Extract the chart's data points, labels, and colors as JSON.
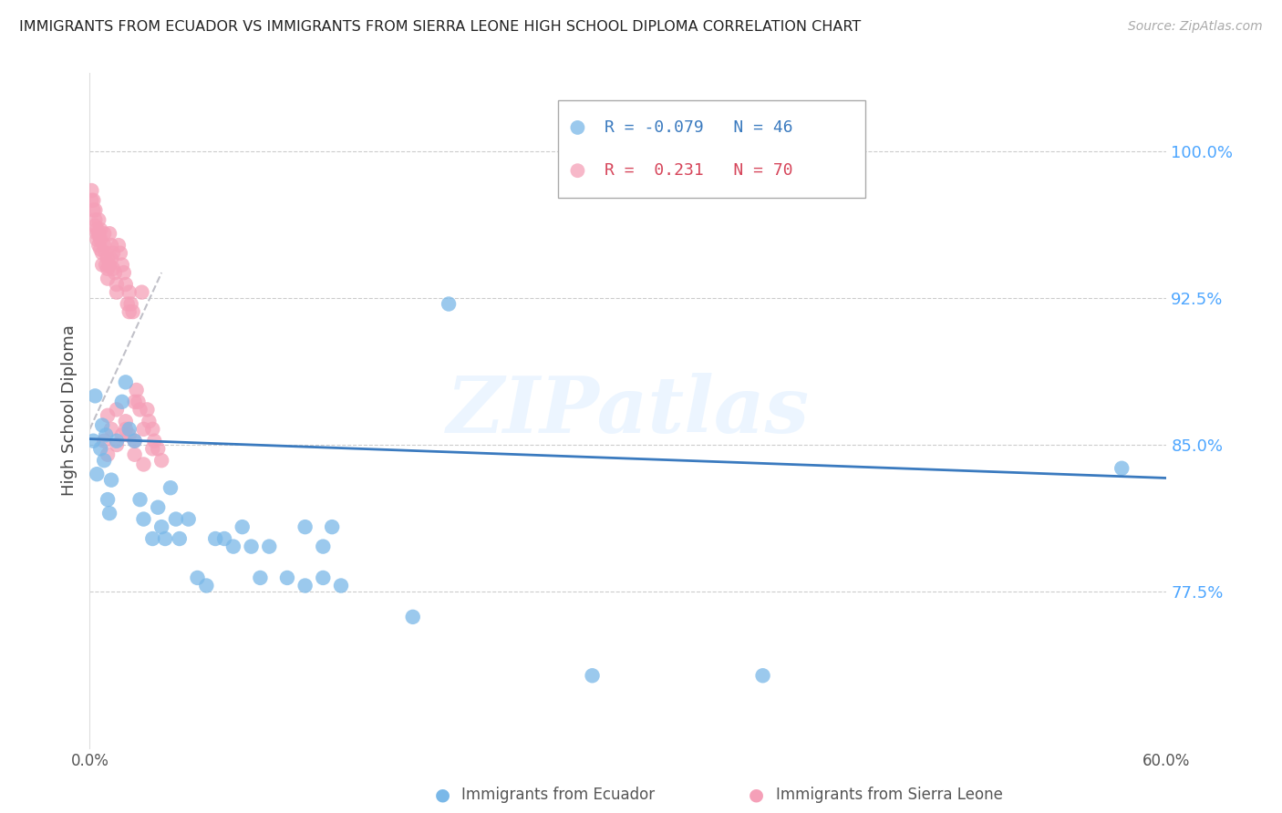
{
  "title": "IMMIGRANTS FROM ECUADOR VS IMMIGRANTS FROM SIERRA LEONE HIGH SCHOOL DIPLOMA CORRELATION CHART",
  "source_text": "Source: ZipAtlas.com",
  "ylabel": "High School Diploma",
  "ytick_labels": [
    "100.0%",
    "92.5%",
    "85.0%",
    "77.5%"
  ],
  "ytick_values": [
    1.0,
    0.925,
    0.85,
    0.775
  ],
  "xlim": [
    0.0,
    0.6
  ],
  "ylim": [
    0.695,
    1.04
  ],
  "watermark_text": "ZIPatlas",
  "legend_r_ecuador": "-0.079",
  "legend_n_ecuador": "46",
  "legend_r_leone": "0.231",
  "legend_n_leone": "70",
  "ecuador_color": "#7ab8e8",
  "leone_color": "#f5a0b8",
  "ecuador_line_color": "#3a7abf",
  "leone_line_color": "#c8c8d0",
  "leone_line_color2": "#e06070",
  "ecuador_x": [
    0.002,
    0.003,
    0.004,
    0.006,
    0.007,
    0.008,
    0.009,
    0.01,
    0.011,
    0.012,
    0.015,
    0.018,
    0.02,
    0.022,
    0.025,
    0.028,
    0.03,
    0.035,
    0.038,
    0.04,
    0.042,
    0.045,
    0.048,
    0.05,
    0.055,
    0.06,
    0.065,
    0.07,
    0.075,
    0.08,
    0.085,
    0.09,
    0.095,
    0.1,
    0.11,
    0.12,
    0.13,
    0.14,
    0.18,
    0.2,
    0.13,
    0.12,
    0.135,
    0.28,
    0.375,
    0.575
  ],
  "ecuador_y": [
    0.852,
    0.875,
    0.835,
    0.848,
    0.86,
    0.842,
    0.855,
    0.822,
    0.815,
    0.832,
    0.852,
    0.872,
    0.882,
    0.858,
    0.852,
    0.822,
    0.812,
    0.802,
    0.818,
    0.808,
    0.802,
    0.828,
    0.812,
    0.802,
    0.812,
    0.782,
    0.778,
    0.802,
    0.802,
    0.798,
    0.808,
    0.798,
    0.782,
    0.798,
    0.782,
    0.778,
    0.782,
    0.778,
    0.762,
    0.922,
    0.798,
    0.808,
    0.808,
    0.732,
    0.732,
    0.838
  ],
  "ecuador_trendline_x": [
    0.0,
    0.6
  ],
  "ecuador_trendline_y": [
    0.853,
    0.833
  ],
  "leone_x": [
    0.001,
    0.001,
    0.002,
    0.002,
    0.003,
    0.003,
    0.003,
    0.004,
    0.004,
    0.004,
    0.005,
    0.005,
    0.005,
    0.006,
    0.006,
    0.006,
    0.007,
    0.007,
    0.008,
    0.008,
    0.009,
    0.009,
    0.01,
    0.01,
    0.01,
    0.011,
    0.011,
    0.012,
    0.012,
    0.013,
    0.013,
    0.014,
    0.015,
    0.015,
    0.016,
    0.017,
    0.018,
    0.019,
    0.02,
    0.021,
    0.022,
    0.022,
    0.023,
    0.024,
    0.025,
    0.026,
    0.027,
    0.028,
    0.029,
    0.03,
    0.032,
    0.033,
    0.035,
    0.036,
    0.038,
    0.04,
    0.02,
    0.022,
    0.015,
    0.018,
    0.01,
    0.012,
    0.008,
    0.025,
    0.03,
    0.035,
    0.025,
    0.02,
    0.015,
    0.01
  ],
  "leone_y": [
    0.98,
    0.975,
    0.975,
    0.97,
    0.97,
    0.965,
    0.962,
    0.96,
    0.958,
    0.955,
    0.965,
    0.958,
    0.952,
    0.96,
    0.955,
    0.95,
    0.948,
    0.942,
    0.958,
    0.952,
    0.948,
    0.942,
    0.945,
    0.94,
    0.935,
    0.958,
    0.942,
    0.952,
    0.945,
    0.948,
    0.94,
    0.938,
    0.932,
    0.928,
    0.952,
    0.948,
    0.942,
    0.938,
    0.932,
    0.922,
    0.918,
    0.928,
    0.922,
    0.918,
    0.872,
    0.878,
    0.872,
    0.868,
    0.928,
    0.858,
    0.868,
    0.862,
    0.858,
    0.852,
    0.848,
    0.842,
    0.862,
    0.855,
    0.868,
    0.855,
    0.865,
    0.858,
    0.852,
    0.845,
    0.84,
    0.848,
    0.852,
    0.858,
    0.85,
    0.845
  ],
  "leone_trendline_x": [
    0.0,
    0.04
  ],
  "leone_trendline_y": [
    0.858,
    0.938
  ]
}
